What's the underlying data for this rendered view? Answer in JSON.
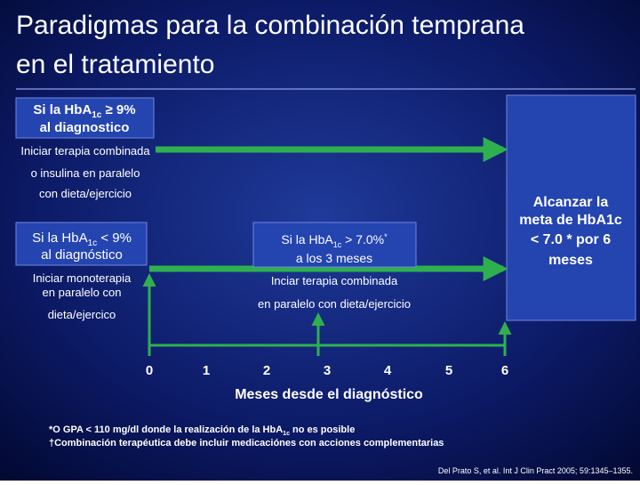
{
  "title": [
    "Paradigmas para la combinación temprana",
    "en el tratamiento"
  ],
  "box_high": {
    "line1": [
      "Si la HbA",
      "1c",
      " ≥ 9%"
    ],
    "line2": "al diagnostico"
  },
  "path_high": [
    "Iniciar terapia combinada",
    "o insulina en paralelo",
    "con dieta/ejercicio"
  ],
  "box_low": {
    "line1": [
      "Si la HbA",
      "1c",
      " < 9%"
    ],
    "line2": "al diagnóstico"
  },
  "path_low": [
    "Iniciar monoterapia",
    "en paralelo con",
    "dieta/ejercico"
  ],
  "box_3m": {
    "line1": [
      "Si la HbA",
      "1c",
      " > 7.0%",
      "*"
    ],
    "line2": "a los 3 meses"
  },
  "path_3m": [
    "Inciar terapia combinada",
    "en paralelo con dieta/ejercicio"
  ],
  "goal": [
    "Alcanzar  la",
    "meta de HbA1c",
    "< 7.0 * por 6",
    "meses"
  ],
  "timeline": {
    "ticks": [
      0,
      1,
      2,
      3,
      4,
      5,
      6
    ],
    "label": "Meses desde el diagnóstico"
  },
  "footnotes": [
    [
      "*O GPA < 110 mg/dl  donde la realización de la HbA",
      "1c",
      " no es posible"
    ],
    [
      "†Combinación terapéutica debe incluir medicaciónes con acciones complementarias"
    ]
  ],
  "citation": "Del Prato S, et al. Int J Clin Pract 2005; 59:1345–1355."
}
